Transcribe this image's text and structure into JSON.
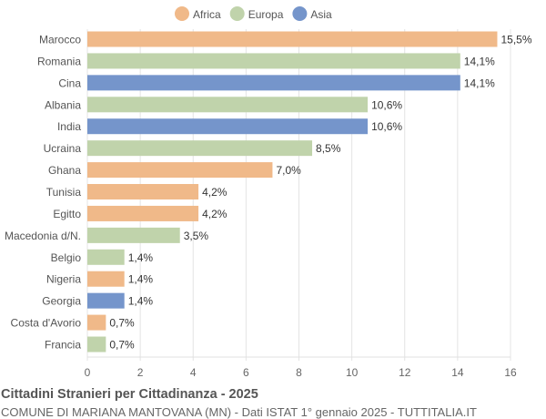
{
  "chart_data": {
    "type": "bar",
    "orientation": "horizontal",
    "title": "Cittadini Stranieri per Cittadinanza - 2025",
    "subtitle": "COMUNE DI MARIANA MANTOVANA (MN) - Dati ISTAT 1° gennaio 2025 - TUTTITALIA.IT",
    "legend": {
      "position": "top",
      "entries": [
        {
          "name": "Africa",
          "color": "#f0b989"
        },
        {
          "name": "Europa",
          "color": "#c0d3ab"
        },
        {
          "name": "Asia",
          "color": "#7595cb"
        }
      ]
    },
    "categories": [
      "Marocco",
      "Romania",
      "Cina",
      "Albania",
      "India",
      "Ucraina",
      "Ghana",
      "Tunisia",
      "Egitto",
      "Macedonia d/N.",
      "Belgio",
      "Nigeria",
      "Georgia",
      "Costa d'Avorio",
      "Francia"
    ],
    "values": [
      15.5,
      14.1,
      14.1,
      10.6,
      10.6,
      8.5,
      7.0,
      4.2,
      4.2,
      3.5,
      1.4,
      1.4,
      1.4,
      0.7,
      0.7
    ],
    "labels": [
      "15,5%",
      "14,1%",
      "14,1%",
      "10,6%",
      "10,6%",
      "8,5%",
      "7,0%",
      "4,2%",
      "4,2%",
      "3,5%",
      "1,4%",
      "1,4%",
      "1,4%",
      "0,7%",
      "0,7%"
    ],
    "groups": [
      "Africa",
      "Europa",
      "Asia",
      "Europa",
      "Asia",
      "Europa",
      "Africa",
      "Africa",
      "Africa",
      "Europa",
      "Europa",
      "Africa",
      "Asia",
      "Africa",
      "Europa"
    ],
    "xlim": [
      0,
      16
    ],
    "xticks": [
      "0",
      "2",
      "4",
      "6",
      "8",
      "10",
      "12",
      "14",
      "16"
    ],
    "grid": true
  }
}
